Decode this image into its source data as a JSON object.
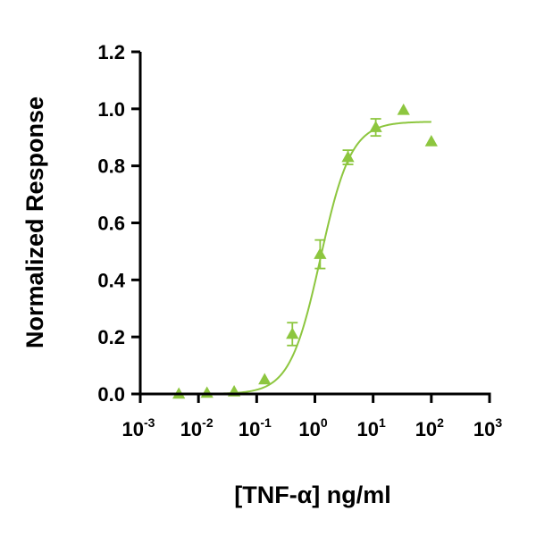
{
  "chart_data": {
    "type": "scatter",
    "xlabel": "[TNF-α] ng/ml",
    "ylabel": "Normalized Response",
    "xscale": "log10",
    "xlim": [
      0.001,
      1000
    ],
    "ylim": [
      0,
      1.2
    ],
    "x_ticks": [
      {
        "base": "10",
        "exp": "-3",
        "value": 0.001
      },
      {
        "base": "10",
        "exp": "-2",
        "value": 0.01
      },
      {
        "base": "10",
        "exp": "-1",
        "value": 0.1
      },
      {
        "base": "10",
        "exp": "0",
        "value": 1
      },
      {
        "base": "10",
        "exp": "1",
        "value": 10
      },
      {
        "base": "10",
        "exp": "2",
        "value": 100
      },
      {
        "base": "10",
        "exp": "3",
        "value": 1000
      }
    ],
    "y_ticks": [
      {
        "label": "0.0",
        "value": 0.0
      },
      {
        "label": "0.2",
        "value": 0.2
      },
      {
        "label": "0.4",
        "value": 0.4
      },
      {
        "label": "0.6",
        "value": 0.6
      },
      {
        "label": "0.8",
        "value": 0.8
      },
      {
        "label": "1.0",
        "value": 1.0
      },
      {
        "label": "1.2",
        "value": 1.2
      }
    ],
    "color": "#8dc63f",
    "marker": "triangle-up",
    "grid": false,
    "points": [
      {
        "x": 0.0046,
        "y": 0.0,
        "err": 0
      },
      {
        "x": 0.014,
        "y": 0.003,
        "err": 0
      },
      {
        "x": 0.041,
        "y": 0.008,
        "err": 0
      },
      {
        "x": 0.137,
        "y": 0.05,
        "err": 0
      },
      {
        "x": 0.41,
        "y": 0.21,
        "err": 0.04
      },
      {
        "x": 1.23,
        "y": 0.49,
        "err": 0.05
      },
      {
        "x": 3.7,
        "y": 0.83,
        "err": 0.025
      },
      {
        "x": 11.1,
        "y": 0.935,
        "err": 0.03
      },
      {
        "x": 33.3,
        "y": 0.995,
        "err": 0
      },
      {
        "x": 100,
        "y": 0.885,
        "err": 0
      }
    ],
    "fit": {
      "model": "4PL",
      "bottom": 0.0,
      "top": 0.955,
      "ec50": 1.25,
      "hill": 1.65,
      "x_range": [
        0.0046,
        100
      ]
    }
  }
}
